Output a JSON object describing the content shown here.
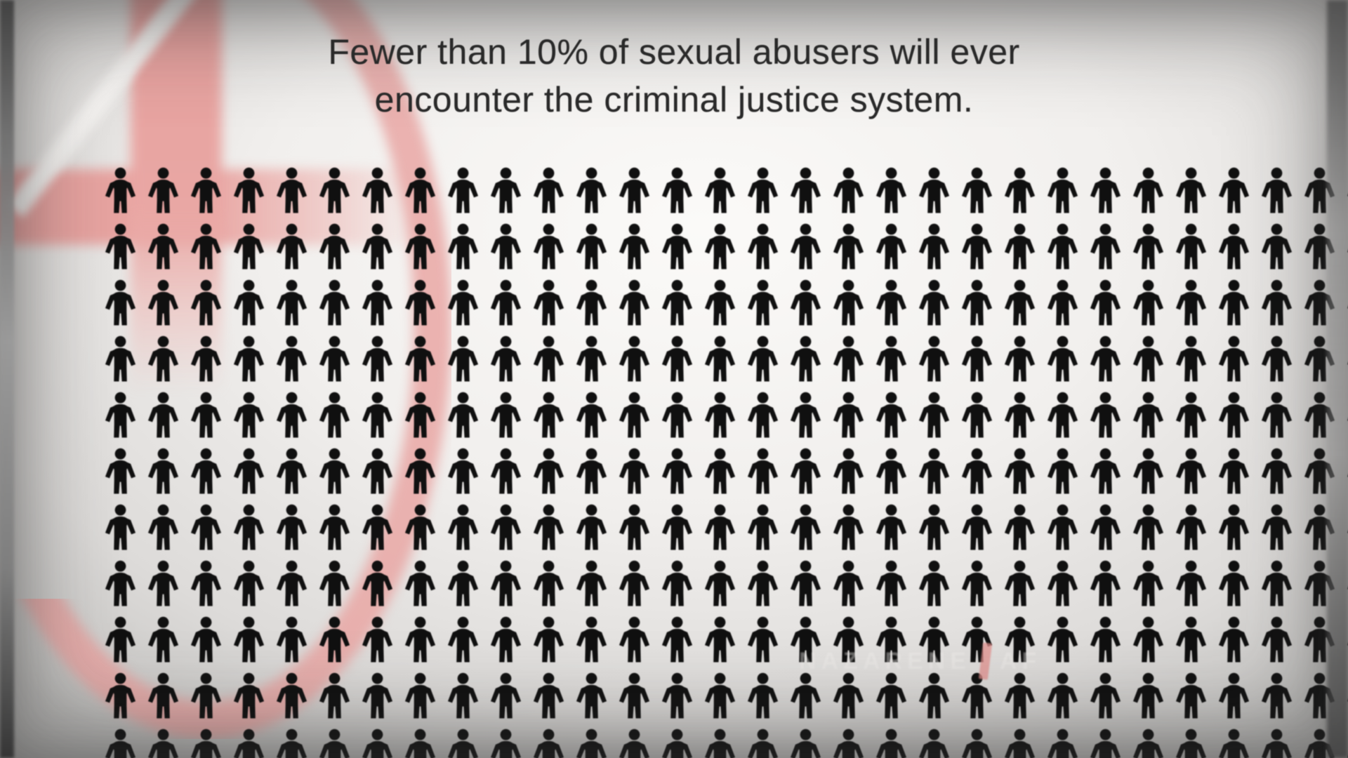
{
  "title": {
    "line1": "Fewer than 10% of sexual abusers will ever",
    "line2": "encounter the criminal justice system."
  },
  "chart_data": {
    "type": "pictograph",
    "title": "Fewer than 10% of sexual abusers will ever encounter the criminal justice system.",
    "icon": "person-icon",
    "icon_color": "#101010",
    "rows": 11,
    "columns": 30,
    "total_icons": 330,
    "statistic_text": "Fewer than 10%",
    "highlighted_icons": 0,
    "legend": [],
    "notes": "Uniform grid of identical black person pictograms; bottom row and right column are cut off by the frame edge."
  },
  "background": {
    "base_color": "#f1efed",
    "accent_pink": "#e9a7a4",
    "logo_shapes": [
      "vertical-bar",
      "horizontal-bar",
      "white-diagonal",
      "circle-arc"
    ],
    "edge_shade": "#3c3c3c"
  },
  "watermark": {
    "text_left": "NAZARENE",
    "text_right": "AF",
    "accent_color": "#e2908d"
  }
}
